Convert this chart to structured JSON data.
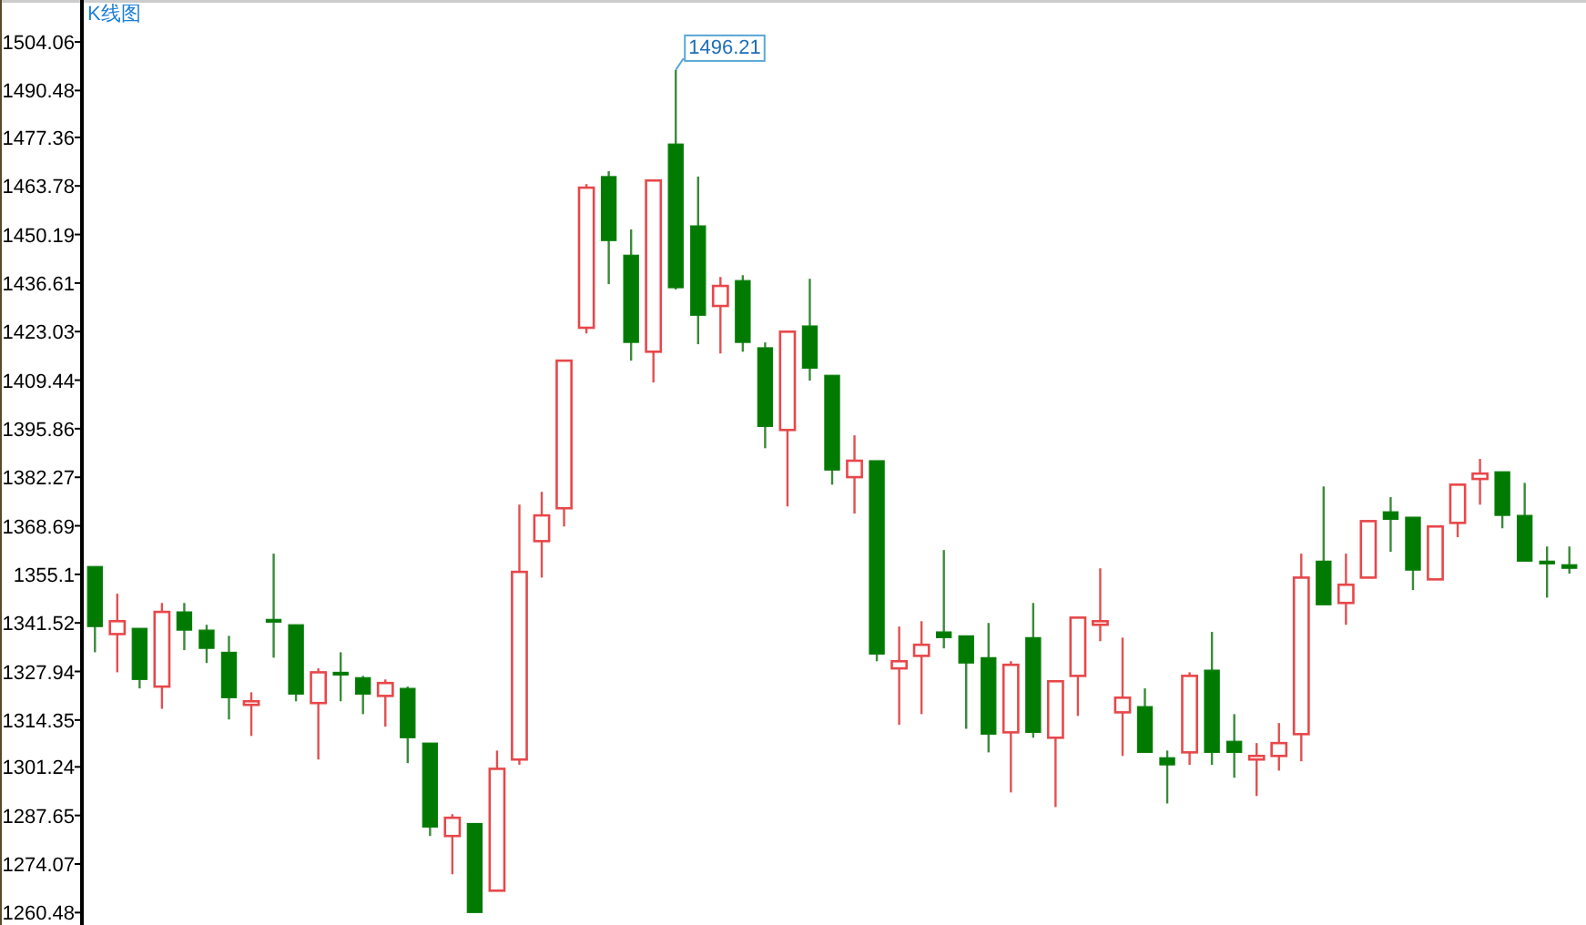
{
  "chart_data": {
    "type": "candlestick",
    "title": "K线图",
    "categories": [
      null,
      null,
      null,
      null,
      null,
      null,
      null,
      null,
      null,
      null,
      null,
      null,
      null,
      null,
      null,
      null,
      null,
      null,
      null,
      null,
      null,
      null,
      null,
      null,
      null,
      null,
      null,
      null,
      null,
      null,
      null,
      null,
      null,
      null,
      null,
      null,
      null,
      null,
      null,
      null,
      null,
      null,
      null,
      null,
      null,
      null,
      null,
      null,
      null,
      null,
      null,
      null,
      null,
      null,
      null,
      null,
      null,
      null,
      null,
      null,
      null,
      null,
      null,
      null,
      null,
      null,
      null
    ],
    "ohlc": [
      [
        1357.3,
        1357.3,
        1333.3,
        1340.5
      ],
      [
        1338.4,
        1349.7,
        1327.7,
        1342.0
      ],
      [
        1340.0,
        1340.0,
        1323.2,
        1325.7
      ],
      [
        1323.7,
        1347.1,
        1317.5,
        1344.6
      ],
      [
        1344.6,
        1347.1,
        1333.9,
        1339.5
      ],
      [
        1339.5,
        1341.0,
        1330.3,
        1334.4
      ],
      [
        1333.3,
        1337.9,
        1314.5,
        1320.6
      ],
      [
        1318.6,
        1322.1,
        1309.9,
        1319.6
      ],
      [
        1342.5,
        1360.9,
        1331.8,
        1342.0
      ],
      [
        1341.0,
        1341.0,
        1319.6,
        1321.6
      ],
      [
        1319.1,
        1328.8,
        1303.3,
        1327.7
      ],
      [
        1327.7,
        1333.3,
        1319.6,
        1327.2
      ],
      [
        1326.2,
        1326.7,
        1316.0,
        1321.6
      ],
      [
        1321.1,
        1325.7,
        1312.5,
        1324.7
      ],
      [
        1323.2,
        1323.7,
        1302.3,
        1309.4
      ],
      [
        1307.9,
        1307.9,
        1281.9,
        1284.4
      ],
      [
        1281.9,
        1288.0,
        1271.2,
        1287.0
      ],
      [
        1285.4,
        1285.4,
        1260.5,
        1260.5
      ],
      [
        1266.6,
        1305.8,
        1266.6,
        1300.7
      ],
      [
        1303.3,
        1374.6,
        1301.8,
        1355.8
      ],
      [
        1364.4,
        1378.2,
        1354.2,
        1371.6
      ],
      [
        1373.6,
        1414.9,
        1368.5,
        1414.9
      ],
      [
        1424.1,
        1464.3,
        1422.5,
        1463.3
      ],
      [
        1466.4,
        1467.9,
        1436.3,
        1448.5
      ],
      [
        1444.4,
        1451.6,
        1414.9,
        1420.0
      ],
      [
        1417.4,
        1465.3,
        1408.8,
        1465.3
      ],
      [
        1475.5,
        1496.21,
        1434.8,
        1435.3
      ],
      [
        1452.6,
        1466.4,
        1419.5,
        1427.6
      ],
      [
        1430.2,
        1438.3,
        1416.9,
        1435.8
      ],
      [
        1437.3,
        1438.8,
        1417.4,
        1420.0
      ],
      [
        1418.5,
        1420.0,
        1390.4,
        1396.5
      ],
      [
        1395.5,
        1423.0,
        1374.1,
        1423.0
      ],
      [
        1424.6,
        1437.8,
        1409.3,
        1412.8
      ],
      [
        1410.8,
        1410.8,
        1380.2,
        1384.3
      ],
      [
        1382.3,
        1394.0,
        1372.1,
        1386.9
      ],
      [
        1386.9,
        1386.9,
        1330.8,
        1332.8
      ],
      [
        1328.8,
        1340.5,
        1313.0,
        1330.8
      ],
      [
        1332.3,
        1342.0,
        1316.0,
        1335.4
      ],
      [
        1339.0,
        1361.9,
        1334.4,
        1337.4
      ],
      [
        1337.9,
        1337.9,
        1311.9,
        1330.3
      ],
      [
        1331.8,
        1341.5,
        1305.3,
        1310.4
      ],
      [
        1310.9,
        1330.8,
        1294.1,
        1329.8
      ],
      [
        1337.4,
        1347.1,
        1309.4,
        1310.9
      ],
      [
        1309.4,
        1325.2,
        1290.0,
        1325.2
      ],
      [
        1326.7,
        1343.0,
        1315.5,
        1343.0
      ],
      [
        1341.0,
        1356.8,
        1336.4,
        1342.0
      ],
      [
        1316.5,
        1337.4,
        1304.3,
        1320.6
      ],
      [
        1318.1,
        1323.2,
        1305.3,
        1305.3
      ],
      [
        1303.8,
        1305.8,
        1291.0,
        1301.8
      ],
      [
        1305.3,
        1327.7,
        1301.8,
        1326.7
      ],
      [
        1328.3,
        1339.0,
        1301.8,
        1305.3
      ],
      [
        1308.4,
        1316.0,
        1298.2,
        1305.3
      ],
      [
        1303.3,
        1307.9,
        1293.1,
        1304.3
      ],
      [
        1304.3,
        1313.5,
        1300.2,
        1307.9
      ],
      [
        1310.4,
        1360.9,
        1302.8,
        1354.2
      ],
      [
        1358.8,
        1379.7,
        1346.6,
        1346.6
      ],
      [
        1347.1,
        1360.9,
        1341.0,
        1352.2
      ],
      [
        1354.2,
        1370.0,
        1354.2,
        1370.0
      ],
      [
        1372.6,
        1376.7,
        1361.4,
        1370.5
      ],
      [
        1371.1,
        1371.1,
        1350.7,
        1356.3
      ],
      [
        1353.7,
        1368.5,
        1353.7,
        1368.5
      ],
      [
        1369.5,
        1380.2,
        1365.5,
        1380.2
      ],
      [
        1381.8,
        1387.4,
        1374.6,
        1383.3
      ],
      [
        1383.8,
        1383.8,
        1368.0,
        1371.6
      ],
      [
        1371.6,
        1380.7,
        1358.8,
        1358.8
      ],
      [
        1358.8,
        1362.9,
        1348.6,
        1358.3
      ],
      [
        1357.8,
        1362.9,
        1355.3,
        1356.8
      ]
    ],
    "ylim": [
      1257.0,
      1515.8
    ],
    "yticks": [
      1260.48,
      1274.07,
      1287.65,
      1301.24,
      1314.35,
      1327.94,
      1341.52,
      1355.1,
      1368.69,
      1382.27,
      1395.86,
      1409.44,
      1423.03,
      1436.61,
      1450.19,
      1463.78,
      1477.36,
      1490.48,
      1504.06
    ],
    "tick_labels": "y",
    "annotations": [
      "1496.21"
    ]
  }
}
